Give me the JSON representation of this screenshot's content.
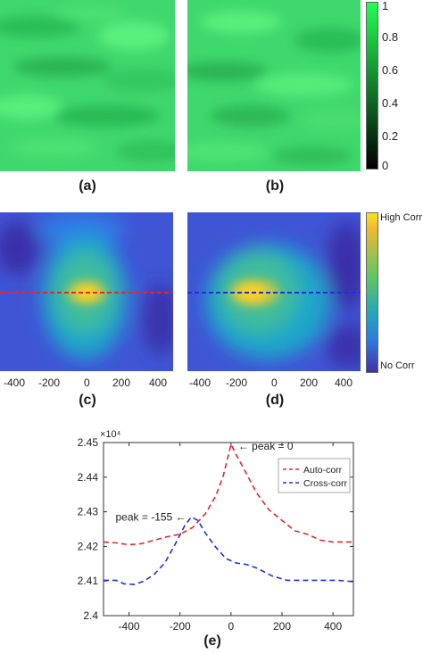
{
  "panels": {
    "a": {
      "caption": "(a)"
    },
    "b": {
      "caption": "(b)"
    },
    "c": {
      "caption": "(c)"
    },
    "d": {
      "caption": "(d)"
    },
    "e": {
      "caption": "(e)"
    }
  },
  "green_colorbar": {
    "ticks": [
      "1",
      "0.8",
      "0.6",
      "0.4",
      "0.2",
      "0"
    ],
    "color_top": "#22ff55",
    "color_bottom": "#000000"
  },
  "corr_colorbar": {
    "high_label": "High Corr",
    "low_label": "No Corr"
  },
  "heatmap_xticks": [
    "-400",
    "-200",
    "0",
    "200",
    "400"
  ],
  "colors": {
    "auto": "#e8262a",
    "cross": "#1f2fd9",
    "peak_yellow": "#ffd21e",
    "map_blue": "#3a47c9"
  },
  "chart_data": {
    "type": "line",
    "title": "",
    "xlabel": "",
    "ylabel": "",
    "y_exponent_label": "×10⁴",
    "xlim": [
      -500,
      480
    ],
    "ylim": [
      2.4,
      2.45
    ],
    "xticks": [
      -400,
      -200,
      0,
      200,
      400
    ],
    "yticks": [
      2.4,
      2.41,
      2.42,
      2.43,
      2.44,
      2.45
    ],
    "legend_position": "top-right",
    "series": [
      {
        "name": "Auto-corr",
        "style": "dashed",
        "color": "#e8262a",
        "x": [
          -500,
          -450,
          -400,
          -350,
          -300,
          -250,
          -200,
          -150,
          -100,
          -60,
          -30,
          -10,
          0,
          20,
          50,
          100,
          150,
          200,
          250,
          300,
          350,
          400,
          480
        ],
        "y": [
          2.4213,
          2.421,
          2.4205,
          2.4208,
          2.4218,
          2.4228,
          2.4235,
          2.4255,
          2.4295,
          2.4345,
          2.4405,
          2.4465,
          2.4495,
          2.4465,
          2.4425,
          2.4355,
          2.4305,
          2.4275,
          2.4245,
          2.4235,
          2.4218,
          2.4213,
          2.4213
        ]
      },
      {
        "name": "Cross-corr",
        "style": "dashed",
        "color": "#1f2fd9",
        "x": [
          -500,
          -450,
          -420,
          -380,
          -340,
          -300,
          -260,
          -220,
          -180,
          -155,
          -130,
          -100,
          -60,
          -20,
          20,
          60,
          100,
          160,
          220,
          300,
          380,
          420,
          480
        ],
        "y": [
          2.4102,
          2.4102,
          2.4092,
          2.409,
          2.41,
          2.412,
          2.4152,
          2.4205,
          2.4262,
          2.4285,
          2.4275,
          2.4238,
          2.4198,
          2.4165,
          2.4152,
          2.4148,
          2.4138,
          2.4115,
          2.4102,
          2.4102,
          2.4102,
          2.4102,
          2.4098
        ]
      }
    ],
    "annotations": [
      {
        "text": "peak = 0",
        "x": 0,
        "y": 2.4495
      },
      {
        "text": "peak = -155",
        "x": -155,
        "y": 2.4285
      }
    ]
  }
}
